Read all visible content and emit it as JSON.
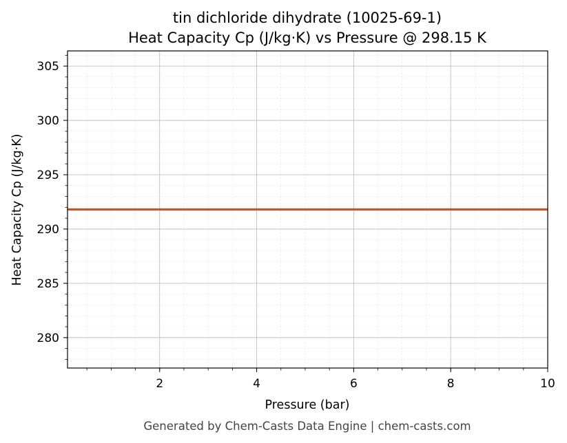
{
  "chart_data": {
    "type": "line",
    "title": "tin dichloride dihydrate (10025-69-1)",
    "subtitle": "Heat Capacity Cp (J/kg·K) vs Pressure @ 298.15 K",
    "xlabel": "Pressure (bar)",
    "ylabel": "Heat Capacity Cp (J/kg·K)",
    "xlim": [
      0.1,
      10
    ],
    "ylim": [
      277.2,
      306.4
    ],
    "x_ticks": [
      2,
      4,
      6,
      8,
      10
    ],
    "y_ticks": [
      280,
      285,
      290,
      295,
      300,
      305
    ],
    "grid": true,
    "series": [
      {
        "color": "#c8552b",
        "x": [
          0.1,
          1,
          2,
          3,
          4,
          5,
          6,
          7,
          8,
          9,
          10
        ],
        "y": [
          291.8,
          291.8,
          291.8,
          291.8,
          291.8,
          291.8,
          291.8,
          291.8,
          291.8,
          291.8,
          291.8
        ]
      }
    ]
  },
  "footer": "Generated by Chem-Casts Data Engine | chem-casts.com"
}
